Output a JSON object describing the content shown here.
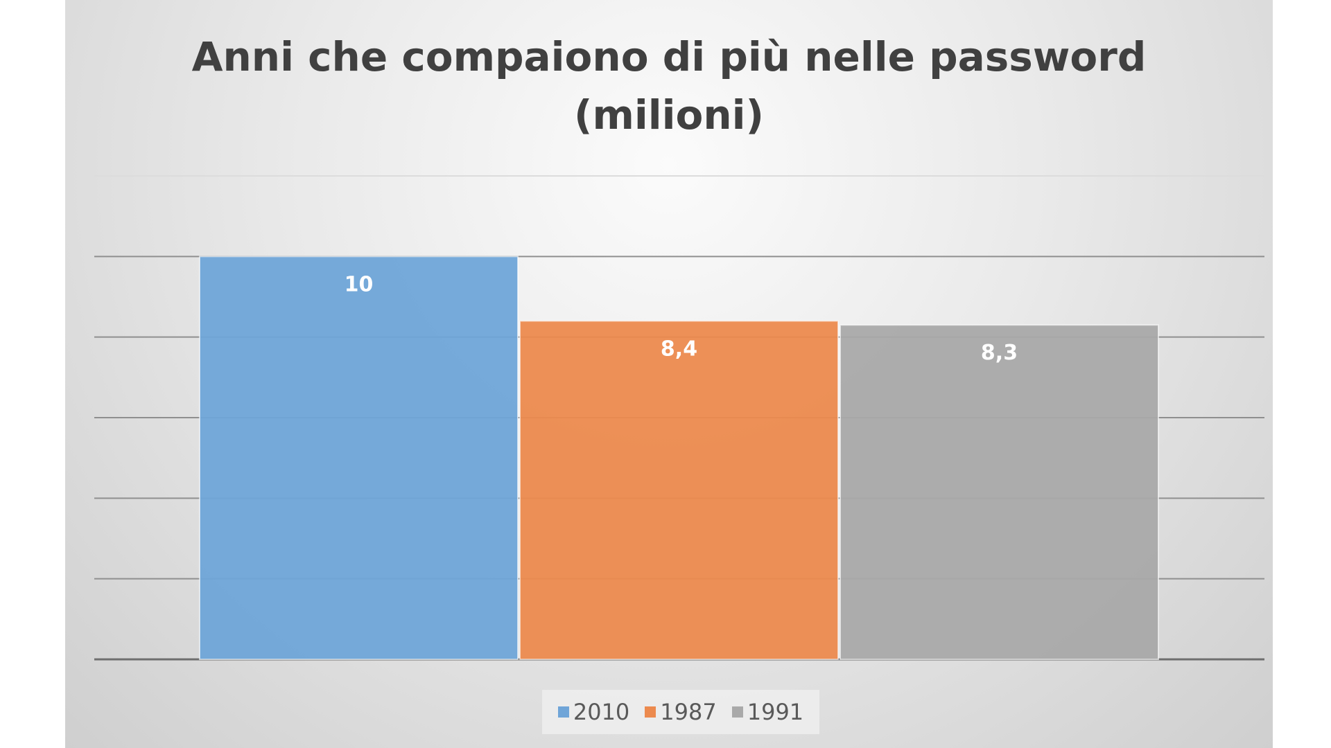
{
  "chart_data": {
    "type": "bar",
    "title": "Anni che compaiono di più nelle password (milioni)",
    "title_lines": [
      "Anni che compaiono di più nelle password",
      "(milioni)"
    ],
    "categories": [
      "2010",
      "1987",
      "1991"
    ],
    "values": [
      10,
      8.4,
      8.3
    ],
    "data_labels": [
      "10",
      "8,4",
      "8,3"
    ],
    "colors": [
      "#6fa5d8",
      "#ec8a4e",
      "#a9a9a9"
    ],
    "ylim": [
      0,
      12
    ],
    "grid": true,
    "xlabel": "",
    "ylabel": "",
    "legend_position": "bottom"
  }
}
